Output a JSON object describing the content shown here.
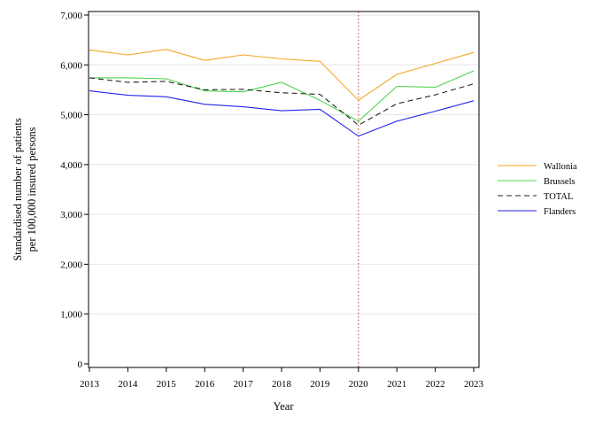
{
  "chart_data": {
    "type": "line",
    "title": "",
    "xlabel": "Year",
    "ylabel_lines": [
      "Standardised number of patients",
      "per 100,000 insured persons"
    ],
    "x": [
      2013,
      2014,
      2015,
      2016,
      2017,
      2018,
      2019,
      2020,
      2021,
      2022,
      2023
    ],
    "ylim": [
      0,
      7000
    ],
    "yticks": [
      0,
      1000,
      2000,
      3000,
      4000,
      5000,
      6000,
      7000
    ],
    "ytick_labels": [
      "0",
      "1,000",
      "2,000",
      "3,000",
      "4,000",
      "5,000",
      "6,000",
      "7,000"
    ],
    "grid": "horizontal",
    "reference_line": {
      "x": 2020,
      "color": "#d9534f",
      "style": "dotted"
    },
    "legend_position": "right",
    "series": [
      {
        "name": "Wallonia",
        "color": "#f5a623",
        "dash": "solid",
        "values": [
          6300,
          6200,
          6310,
          6090,
          6200,
          6120,
          6070,
          5290,
          5810,
          6030,
          6250
        ]
      },
      {
        "name": "Brussels",
        "color": "#4cd44c",
        "dash": "solid",
        "values": [
          5740,
          5740,
          5720,
          5480,
          5460,
          5650,
          5290,
          4870,
          5570,
          5550,
          5880
        ]
      },
      {
        "name": "TOTAL",
        "color": "#222222",
        "dash": "dashed",
        "values": [
          5740,
          5650,
          5670,
          5500,
          5510,
          5440,
          5410,
          4790,
          5220,
          5400,
          5620
        ]
      },
      {
        "name": "Flanders",
        "color": "#2323e8",
        "dash": "solid",
        "values": [
          5480,
          5390,
          5360,
          5210,
          5160,
          5080,
          5110,
          4570,
          4870,
          5070,
          5280
        ]
      }
    ]
  }
}
